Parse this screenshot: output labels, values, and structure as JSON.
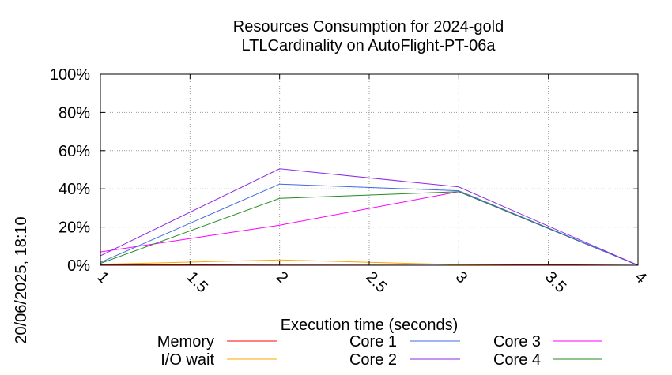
{
  "chart_data": {
    "type": "line",
    "title_line1": "Resources Consumption for 2024-gold",
    "title_line2": "LTLCardinality on AutoFlight-PT-06a",
    "xlabel": "Execution time (seconds)",
    "ylabel": "",
    "side_label": "20/06/2025, 18:10",
    "xlim": [
      1,
      4
    ],
    "ylim": [
      0,
      100
    ],
    "x_ticks": [
      {
        "value": 1,
        "label": "1"
      },
      {
        "value": 1.5,
        "label": "1.5"
      },
      {
        "value": 2,
        "label": "2"
      },
      {
        "value": 2.5,
        "label": "2.5"
      },
      {
        "value": 3,
        "label": "3"
      },
      {
        "value": 3.5,
        "label": "3.5"
      },
      {
        "value": 4,
        "label": "4"
      }
    ],
    "y_ticks": [
      {
        "value": 0,
        "label": "0%"
      },
      {
        "value": 20,
        "label": "20%"
      },
      {
        "value": 40,
        "label": "40%"
      },
      {
        "value": 60,
        "label": "60%"
      },
      {
        "value": 80,
        "label": "80%"
      },
      {
        "value": 100,
        "label": "100%"
      }
    ],
    "grid": true,
    "legend_position": "bottom",
    "series": [
      {
        "name": "Memory",
        "color": "#ff0000",
        "x": [
          1,
          2,
          3,
          4
        ],
        "y": [
          0.3,
          0.5,
          0.6,
          0
        ]
      },
      {
        "name": "I/O wait",
        "color": "#ffa500",
        "x": [
          1,
          2,
          3,
          4
        ],
        "y": [
          0.5,
          2.8,
          0.3,
          0
        ]
      },
      {
        "name": "Core 1",
        "color": "#4169e1",
        "x": [
          1,
          2,
          3,
          4
        ],
        "y": [
          1.5,
          42.5,
          39,
          0
        ]
      },
      {
        "name": "Core 2",
        "color": "#8a2be2",
        "x": [
          1,
          2,
          3,
          4
        ],
        "y": [
          5,
          50.5,
          41,
          0
        ]
      },
      {
        "name": "Core 3",
        "color": "#ff00ff",
        "x": [
          1,
          2,
          3,
          4
        ],
        "y": [
          7,
          21,
          38.5,
          0
        ]
      },
      {
        "name": "Core 4",
        "color": "#228b22",
        "x": [
          1,
          2,
          3,
          4
        ],
        "y": [
          1,
          35,
          38.5,
          0
        ]
      }
    ]
  }
}
